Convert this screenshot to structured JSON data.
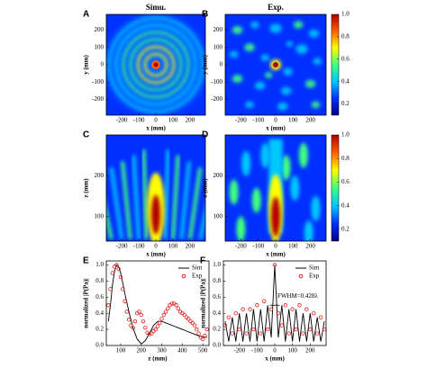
{
  "chart_data": [
    {
      "type": "heatmap",
      "panel": "A",
      "title": "Simu.",
      "xlabel": "x (mm)",
      "ylabel": "y (mm)",
      "xlim": [
        -290,
        290
      ],
      "ylim": [
        -290,
        290
      ],
      "xticks": [
        -200,
        -100,
        0,
        100,
        200
      ],
      "yticks": [
        -200,
        -100,
        0,
        100,
        200
      ],
      "colormap": [
        "#00007f",
        "#0030ff",
        "#00c8ff",
        "#40ff80",
        "#ffff00",
        "#ff6000",
        "#b00000"
      ]
    },
    {
      "type": "heatmap",
      "panel": "B",
      "title": "Exp.",
      "xlabel": "x (mm)",
      "ylabel": "y (mm)",
      "xlim": [
        -290,
        290
      ],
      "ylim": [
        -290,
        290
      ],
      "xticks": [
        -200,
        -100,
        0,
        100,
        200
      ],
      "yticks": [
        -200,
        -100,
        0,
        100,
        200
      ],
      "colormap": [
        "#00007f",
        "#0030ff",
        "#00c8ff",
        "#40ff80",
        "#ffff00",
        "#ff6000",
        "#b00000"
      ],
      "colorbar": {
        "clim": [
          0.1,
          1
        ],
        "ticks": [
          0.2,
          0.4,
          0.6,
          0.8,
          {
            "value": 1,
            "label": "1.0"
          }
        ]
      }
    },
    {
      "type": "heatmap",
      "panel": "C",
      "xlabel": "x (mm)",
      "ylabel": "z (mm)",
      "xlim": [
        -290,
        290
      ],
      "ylim": [
        40,
        300
      ],
      "xticks": [
        -200,
        -100,
        0,
        100,
        200
      ],
      "yticks": [
        100,
        200
      ],
      "colormap": [
        "#00007f",
        "#0030ff",
        "#00c8ff",
        "#40ff80",
        "#ffff00",
        "#ff6000",
        "#b00000"
      ]
    },
    {
      "type": "heatmap",
      "panel": "D",
      "xlabel": "x (mm)",
      "ylabel": "z (mm)",
      "xlim": [
        -290,
        290
      ],
      "ylim": [
        40,
        300
      ],
      "xticks": [
        -200,
        -100,
        0,
        100,
        200
      ],
      "yticks": [
        100,
        200
      ],
      "colormap": [
        "#00007f",
        "#0030ff",
        "#00c8ff",
        "#40ff80",
        "#ffff00",
        "#ff6000",
        "#b00000"
      ],
      "colorbar": {
        "clim": [
          0.1,
          1
        ],
        "ticks": [
          0.2,
          0.4,
          0.6,
          0.8,
          {
            "value": 1,
            "label": "1.0"
          }
        ]
      }
    },
    {
      "type": "line",
      "panel": "E",
      "xlabel": "z (mm)",
      "ylabel": "normalized |P(Pa)|",
      "xlim": [
        30,
        530
      ],
      "ylim": [
        0,
        1.05
      ],
      "xticks": [
        100,
        200,
        300,
        400,
        500
      ],
      "yticks": [
        {
          "value": 0,
          "label": "0.0"
        },
        0.2,
        0.4,
        0.6,
        0.8,
        {
          "value": 1,
          "label": "1.0"
        }
      ],
      "legend": "upper right",
      "series": [
        {
          "name": "Sim",
          "color": "#000000",
          "style": "line",
          "x": [
            40,
            50,
            60,
            70,
            80,
            90,
            100,
            110,
            120,
            140,
            160,
            180,
            200,
            220,
            240,
            260,
            280,
            300,
            320,
            340,
            360,
            380,
            400,
            420,
            440,
            460,
            480,
            500,
            520
          ],
          "values": [
            0.3,
            0.5,
            0.75,
            0.92,
            1.0,
            0.98,
            0.9,
            0.78,
            0.65,
            0.42,
            0.22,
            0.08,
            0.02,
            0.06,
            0.15,
            0.25,
            0.3,
            0.3,
            0.28,
            0.26,
            0.24,
            0.22,
            0.2,
            0.18,
            0.16,
            0.14,
            0.12,
            0.11,
            0.1
          ]
        },
        {
          "name": "Exp",
          "color": "#e02020",
          "style": "markers",
          "x": [
            40,
            50,
            60,
            70,
            80,
            90,
            100,
            110,
            120,
            130,
            140,
            150,
            160,
            170,
            180,
            190,
            200,
            210,
            220,
            230,
            240,
            250,
            260,
            270,
            280,
            290,
            300,
            310,
            320,
            330,
            340,
            350,
            360,
            370,
            380,
            390,
            400,
            410,
            420,
            430,
            440,
            450,
            460,
            470,
            480,
            490,
            500,
            510,
            520
          ],
          "values": [
            0.5,
            0.7,
            0.9,
            0.98,
            1.0,
            0.95,
            0.85,
            0.7,
            0.55,
            0.42,
            0.32,
            0.25,
            0.22,
            0.3,
            0.4,
            0.42,
            0.38,
            0.3,
            0.22,
            0.16,
            0.14,
            0.15,
            0.18,
            0.2,
            0.24,
            0.28,
            0.33,
            0.38,
            0.42,
            0.46,
            0.5,
            0.52,
            0.52,
            0.5,
            0.46,
            0.42,
            0.4,
            0.38,
            0.35,
            0.33,
            0.3,
            0.28,
            0.25,
            0.2,
            0.15,
            0.1,
            0.08,
            0.12,
            0.2
          ]
        }
      ]
    },
    {
      "type": "line",
      "panel": "F",
      "xlabel": "x (mm)",
      "ylabel": "normalized |P(Pa)|",
      "annotation": "FWHM=0.428λ",
      "xlim": [
        -290,
        290
      ],
      "ylim": [
        0,
        1.05
      ],
      "xticks": [
        -200,
        -100,
        0,
        100,
        200
      ],
      "yticks": [
        {
          "value": 0,
          "label": "0.0"
        },
        0.2,
        0.4,
        0.6,
        0.8,
        {
          "value": 1,
          "label": "1.0"
        }
      ],
      "legend": "upper right",
      "series": [
        {
          "name": "Sim",
          "color": "#000000",
          "style": "line",
          "x": [
            -280,
            -260,
            -240,
            -220,
            -200,
            -180,
            -160,
            -140,
            -120,
            -100,
            -80,
            -60,
            -40,
            -20,
            0,
            20,
            40,
            60,
            80,
            100,
            120,
            140,
            160,
            180,
            200,
            220,
            240,
            260,
            280
          ],
          "values": [
            0.3,
            0.05,
            0.35,
            0.05,
            0.4,
            0.05,
            0.4,
            0.05,
            0.45,
            0.05,
            0.45,
            0.05,
            0.5,
            0.1,
            1.0,
            0.1,
            0.5,
            0.05,
            0.45,
            0.05,
            0.45,
            0.05,
            0.4,
            0.05,
            0.4,
            0.05,
            0.35,
            0.05,
            0.3
          ]
        },
        {
          "name": "Exp",
          "color": "#e02020",
          "style": "markers",
          "x": [
            -280,
            -260,
            -240,
            -220,
            -200,
            -180,
            -160,
            -140,
            -120,
            -100,
            -80,
            -60,
            -40,
            -20,
            0,
            20,
            40,
            60,
            80,
            100,
            120,
            140,
            160,
            180,
            200,
            220,
            240,
            260,
            280
          ],
          "values": [
            0.25,
            0.35,
            0.15,
            0.4,
            0.2,
            0.45,
            0.15,
            0.45,
            0.2,
            0.5,
            0.15,
            0.55,
            0.2,
            0.45,
            1.0,
            0.4,
            0.25,
            0.5,
            0.15,
            0.45,
            0.2,
            0.5,
            0.15,
            0.45,
            0.2,
            0.4,
            0.15,
            0.35,
            0.2
          ]
        }
      ]
    }
  ]
}
